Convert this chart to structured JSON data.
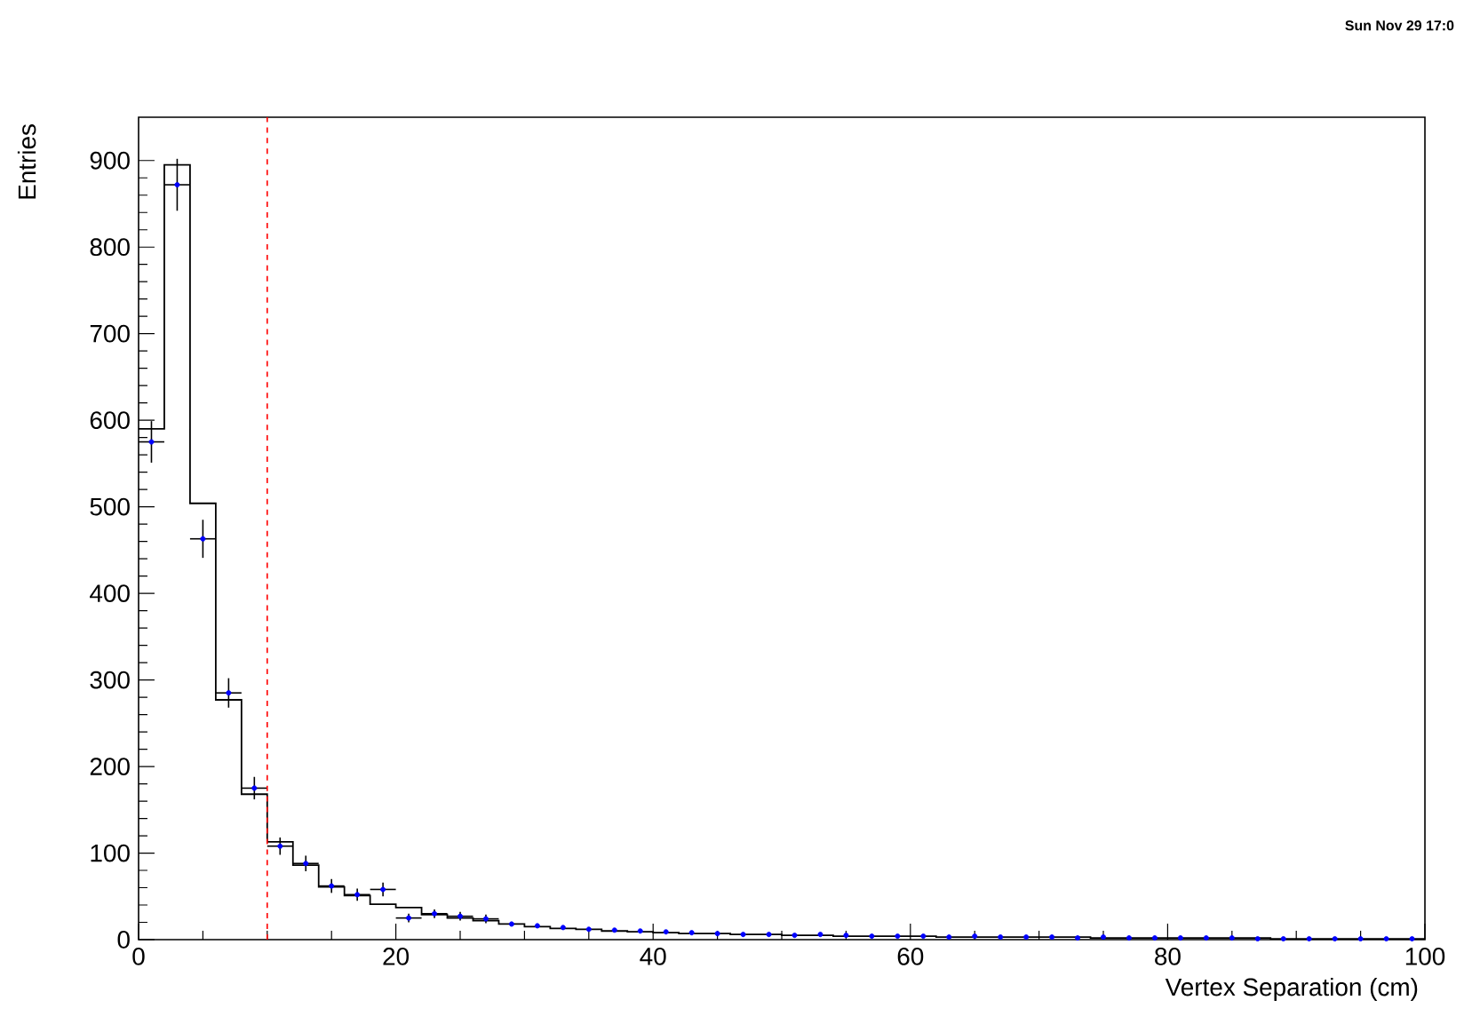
{
  "chart_data": {
    "type": "histogram",
    "xlabel": "Vertex Separation (cm)",
    "ylabel": "Entries",
    "annotations": [
      "Sun Nov 29 17:0"
    ],
    "xlim": [
      0,
      100
    ],
    "ylim": [
      0,
      950
    ],
    "xticks": [
      0,
      20,
      40,
      60,
      80,
      100
    ],
    "yticks": [
      0,
      100,
      200,
      300,
      400,
      500,
      600,
      700,
      800,
      900
    ],
    "bins": [
      0,
      2,
      4,
      6,
      8,
      10,
      12,
      14,
      16,
      18,
      20,
      22,
      24,
      26,
      28,
      30,
      32,
      34,
      36,
      38,
      40,
      42,
      44,
      46,
      48,
      50,
      52,
      54,
      56,
      58,
      60,
      62,
      64,
      66,
      68,
      70,
      72,
      74,
      76,
      78,
      80,
      82,
      84,
      86,
      88,
      90,
      92,
      94,
      96,
      98,
      100
    ],
    "values": [
      590,
      895,
      504,
      277,
      168,
      113,
      86,
      61,
      51,
      41,
      37,
      29,
      25,
      22,
      18,
      15,
      13,
      12,
      10,
      9,
      8,
      7,
      7,
      6,
      6,
      5,
      5,
      4,
      4,
      4,
      4,
      3,
      3,
      3,
      3,
      3,
      3,
      2,
      2,
      2,
      2,
      2,
      2,
      2,
      1,
      1,
      1,
      1,
      1,
      1
    ],
    "color": "#000000",
    "series": [
      {
        "type": "scatter",
        "color": "#0000ff",
        "x": [
          1,
          3,
          5,
          7,
          9,
          11,
          13,
          15,
          17,
          19,
          21,
          23,
          25,
          27,
          29,
          31,
          33,
          35,
          37,
          39,
          41,
          43,
          45,
          47,
          49,
          51,
          53,
          55,
          57,
          59,
          61,
          63,
          65,
          67,
          69,
          71,
          73,
          75,
          77,
          79,
          81,
          83,
          85,
          87,
          89,
          91,
          93,
          95,
          97,
          99
        ],
        "values": [
          575,
          872,
          463,
          285,
          175,
          108,
          88,
          62,
          52,
          58,
          25,
          30,
          27,
          24,
          18,
          16,
          14,
          12,
          11,
          10,
          9,
          8,
          7,
          6,
          6,
          5,
          6,
          5,
          4,
          4,
          4,
          3,
          4,
          3,
          3,
          3,
          2,
          3,
          2,
          2,
          2,
          2,
          2,
          1,
          1,
          1,
          1,
          1,
          1,
          1
        ],
        "errors": [
          24,
          30,
          22,
          17,
          13,
          10,
          9,
          8,
          7,
          8,
          5,
          5,
          5,
          5,
          null,
          null,
          null,
          null,
          null,
          null,
          null,
          null,
          null,
          null,
          null,
          null,
          null,
          null,
          null,
          null,
          null,
          null,
          null,
          null,
          null,
          null,
          null,
          null,
          null,
          null,
          null,
          null,
          null,
          null,
          null,
          null,
          null,
          null,
          null,
          null
        ],
        "xerrors": [
          1,
          1,
          1,
          1,
          1,
          1,
          1,
          1,
          1,
          1,
          1,
          1,
          1,
          1,
          null,
          null,
          null,
          null,
          null,
          null,
          null,
          null,
          null,
          null,
          null,
          null,
          null,
          null,
          null,
          null,
          null,
          null,
          null,
          null,
          null,
          null,
          null,
          null,
          null,
          null,
          null,
          null,
          null,
          null,
          null,
          null,
          null,
          null,
          null,
          null
        ]
      }
    ],
    "ref_lines": [
      {
        "axis": "x",
        "value": 10,
        "color": "#ff0000",
        "line_style": "dashed"
      }
    ],
    "grid": false
  }
}
